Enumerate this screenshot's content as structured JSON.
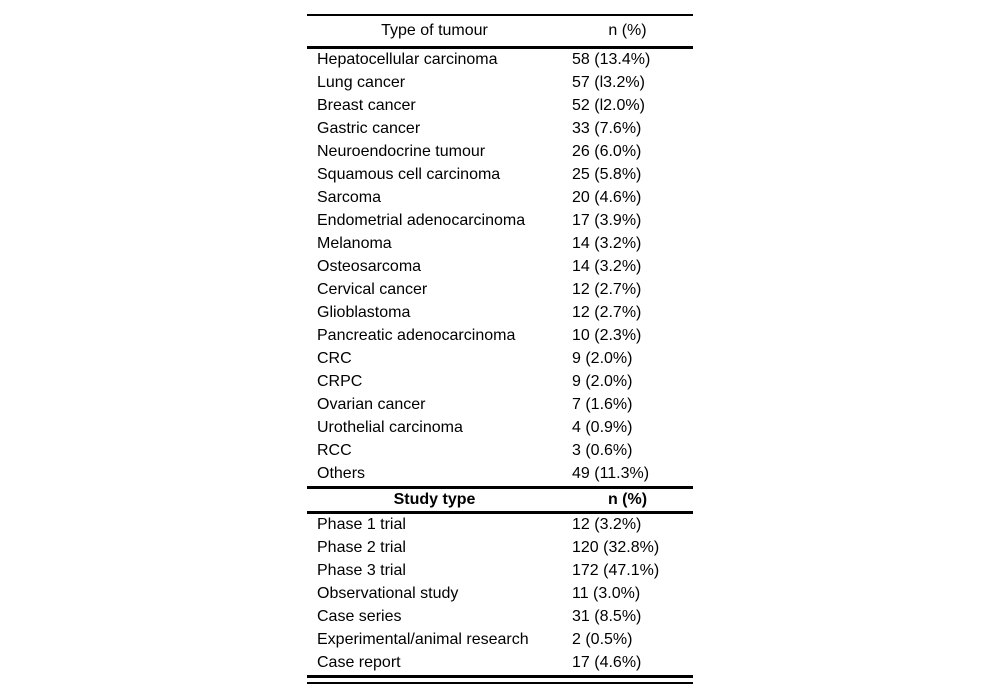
{
  "colors": {
    "background": "#ffffff",
    "text": "#000000",
    "rule": "#000000"
  },
  "table": {
    "sections": [
      {
        "header": {
          "type_label": "Type of tumour",
          "n_label": "n (%)"
        },
        "rows": [
          {
            "label": "Hepatocellular carcinoma",
            "value": "58 (13.4%)"
          },
          {
            "label": "Lung cancer",
            "value": "57 (l3.2%)"
          },
          {
            "label": "Breast cancer",
            "value": "52 (l2.0%)"
          },
          {
            "label": "Gastric cancer",
            "value": "33 (7.6%)"
          },
          {
            "label": "Neuroendocrine tumour",
            "value": "26 (6.0%)"
          },
          {
            "label": "Squamous cell carcinoma",
            "value": "25 (5.8%)"
          },
          {
            "label": "Sarcoma",
            "value": "20 (4.6%)"
          },
          {
            "label": "Endometrial adenocarcinoma",
            "value": "17 (3.9%)"
          },
          {
            "label": "Melanoma",
            "value": "14 (3.2%)"
          },
          {
            "label": "Osteosarcoma",
            "value": "14 (3.2%)"
          },
          {
            "label": "Cervical cancer",
            "value": "12 (2.7%)"
          },
          {
            "label": "Glioblastoma",
            "value": "12 (2.7%)"
          },
          {
            "label": "Pancreatic adenocarcinoma",
            "value": "10 (2.3%)"
          },
          {
            "label": "CRC",
            "value": "9 (2.0%)"
          },
          {
            "label": "CRPC",
            "value": "9 (2.0%)"
          },
          {
            "label": "Ovarian cancer",
            "value": "7 (1.6%)"
          },
          {
            "label": "Urothelial carcinoma",
            "value": "4 (0.9%)"
          },
          {
            "label": "RCC",
            "value": "3 (0.6%)"
          },
          {
            "label": "Others",
            "value": "49 (11.3%)"
          }
        ]
      },
      {
        "header": {
          "type_label": "Study type",
          "n_label": "n (%)"
        },
        "rows": [
          {
            "label": "Phase 1 trial",
            "value": "12 (3.2%)"
          },
          {
            "label": "Phase 2 trial",
            "value": "120 (32.8%)"
          },
          {
            "label": "Phase 3 trial",
            "value": "172 (47.1%)"
          },
          {
            "label": "Observational study",
            "value": "11 (3.0%)"
          },
          {
            "label": "Case series",
            "value": "31 (8.5%)"
          },
          {
            "label": "Experimental/animal research",
            "value": "2 (0.5%)"
          },
          {
            "label": "Case report",
            "value": "17 (4.6%)"
          }
        ]
      }
    ]
  }
}
